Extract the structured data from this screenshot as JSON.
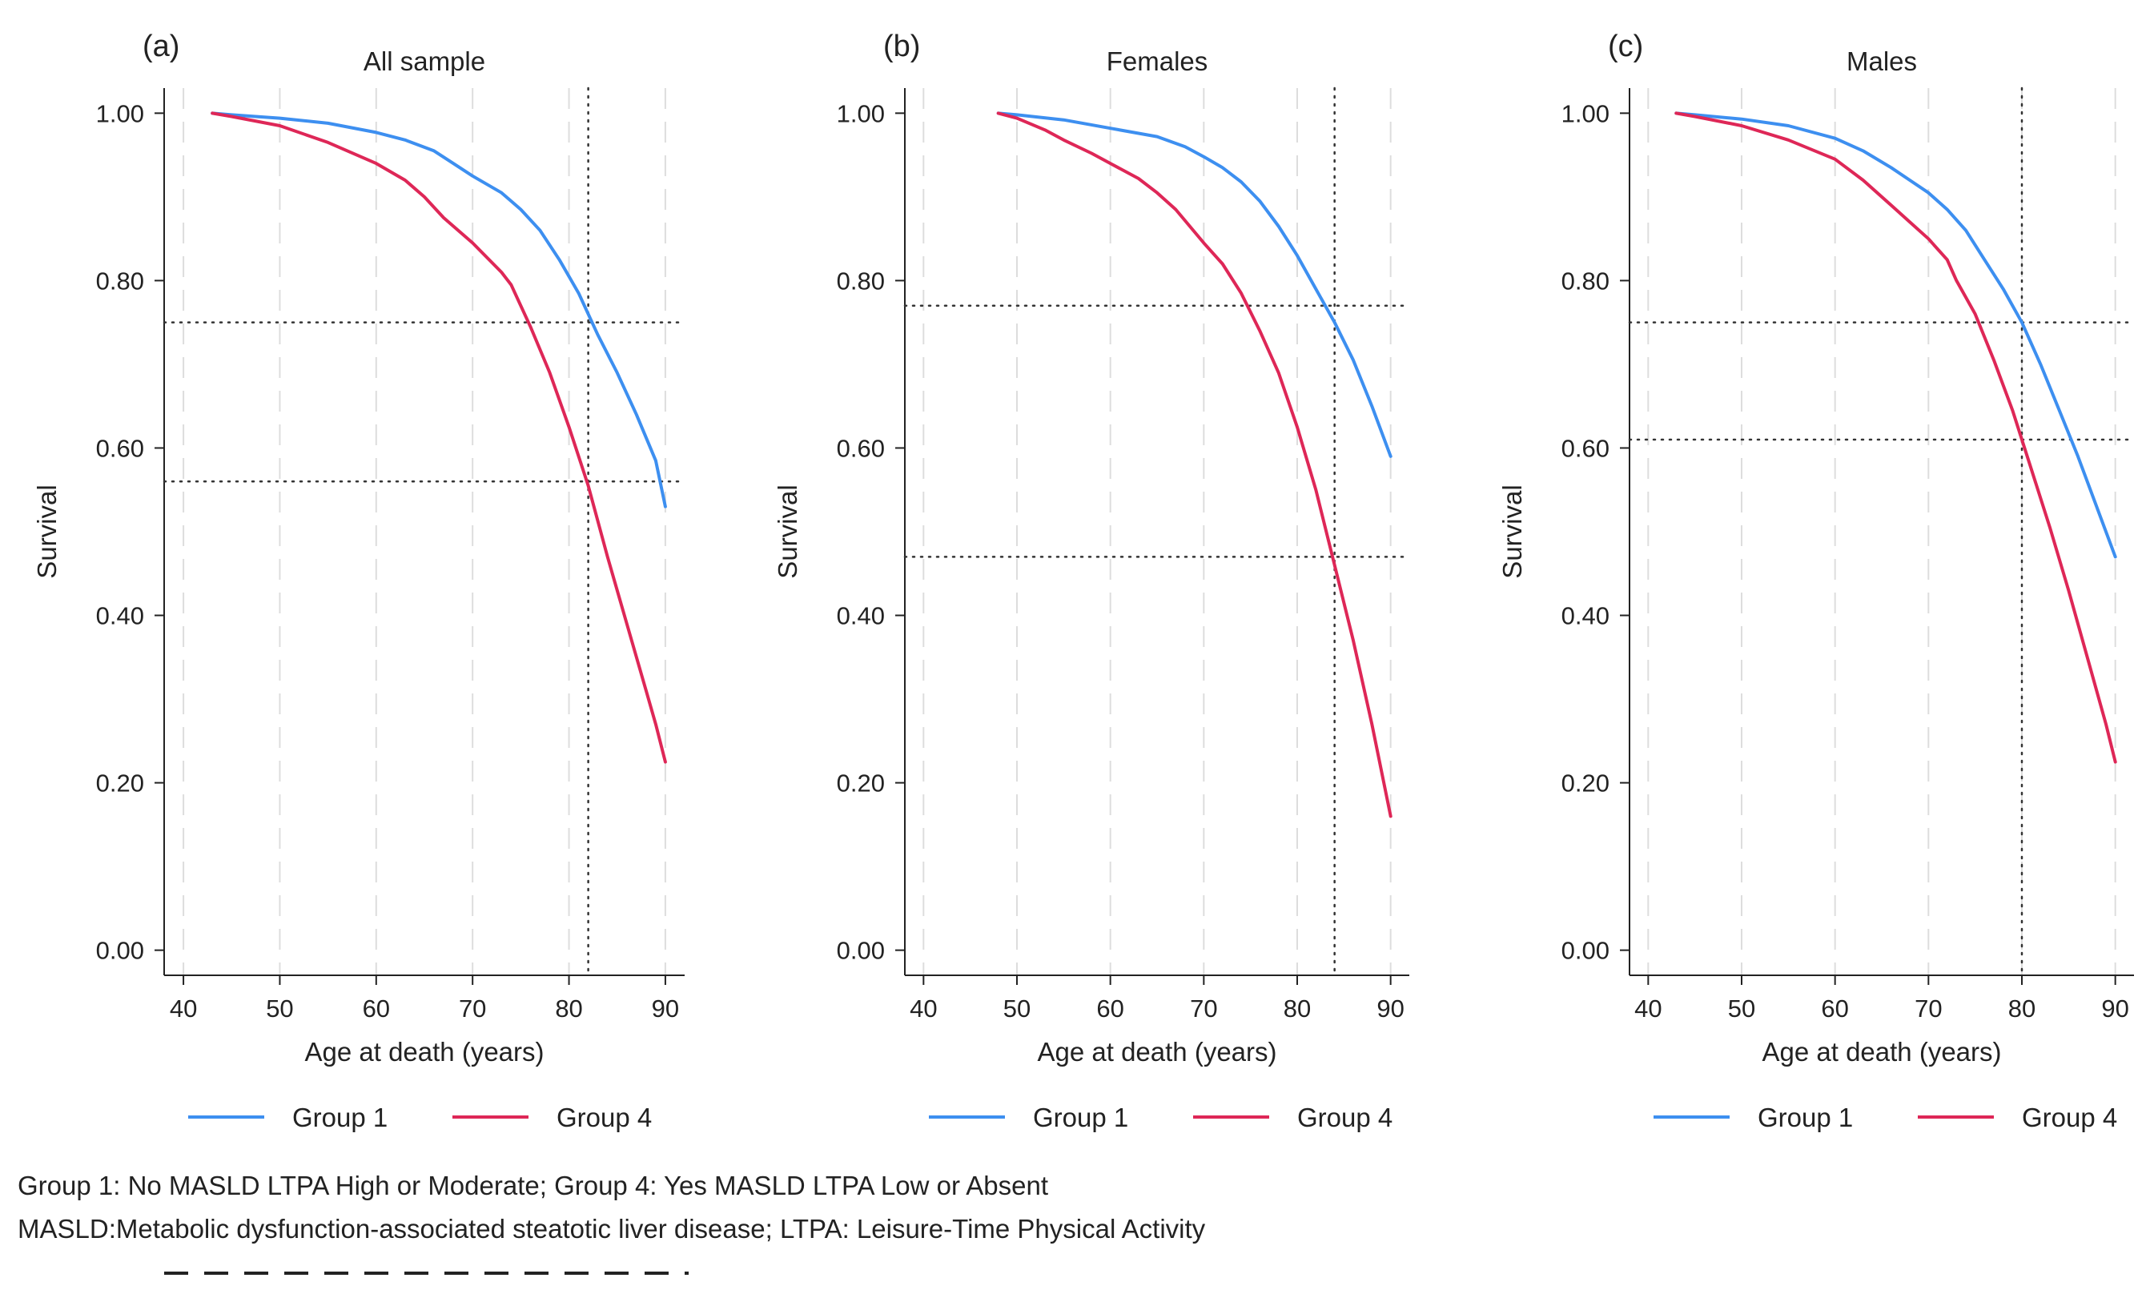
{
  "chart_data": [
    {
      "panel": "(a)",
      "type": "line",
      "title": "All sample",
      "xlabel": "Age at death (years)",
      "ylabel": "Survival",
      "xlim": [
        38,
        92
      ],
      "ylim": [
        -0.03,
        1.03
      ],
      "x_ticks": [
        40,
        50,
        60,
        70,
        80,
        90
      ],
      "y_ticks": [
        0.0,
        0.2,
        0.4,
        0.6,
        0.8,
        1.0
      ],
      "x_tick_labels": [
        "40",
        "50",
        "60",
        "70",
        "80",
        "90"
      ],
      "y_tick_labels": [
        "0.00",
        "0.20",
        "0.40",
        "0.60",
        "0.80",
        "1.00"
      ],
      "grid": "vertical dashed",
      "reference_lines": {
        "x": [
          82
        ],
        "y": [
          0.75,
          0.56
        ]
      },
      "series": [
        {
          "name": "Group 1",
          "color": "#3d8ff0",
          "x": [
            43,
            45,
            50,
            55,
            60,
            63,
            66,
            68,
            70,
            73,
            75,
            77,
            79,
            81,
            83,
            85,
            87,
            89,
            90
          ],
          "y": [
            1.0,
            0.998,
            0.994,
            0.988,
            0.977,
            0.968,
            0.955,
            0.94,
            0.925,
            0.905,
            0.885,
            0.86,
            0.825,
            0.785,
            0.735,
            0.69,
            0.64,
            0.585,
            0.53
          ]
        },
        {
          "name": "Group 4",
          "color": "#de2757",
          "x": [
            43,
            45,
            50,
            55,
            60,
            63,
            65,
            67,
            70,
            73,
            74,
            76,
            78,
            80,
            82,
            84,
            86,
            88,
            89,
            90
          ],
          "y": [
            1.0,
            0.996,
            0.985,
            0.965,
            0.94,
            0.92,
            0.9,
            0.875,
            0.845,
            0.81,
            0.795,
            0.745,
            0.69,
            0.625,
            0.555,
            0.47,
            0.39,
            0.31,
            0.27,
            0.225
          ]
        }
      ]
    },
    {
      "panel": "(b)",
      "type": "line",
      "title": "Females",
      "xlabel": "Age at death (years)",
      "ylabel": "Survival",
      "xlim": [
        38,
        92
      ],
      "ylim": [
        -0.03,
        1.03
      ],
      "x_ticks": [
        40,
        50,
        60,
        70,
        80,
        90
      ],
      "y_ticks": [
        0.0,
        0.2,
        0.4,
        0.6,
        0.8,
        1.0
      ],
      "x_tick_labels": [
        "40",
        "50",
        "60",
        "70",
        "80",
        "90"
      ],
      "y_tick_labels": [
        "0.00",
        "0.20",
        "0.40",
        "0.60",
        "0.80",
        "1.00"
      ],
      "grid": "vertical dashed",
      "reference_lines": {
        "x": [
          84
        ],
        "y": [
          0.77,
          0.47
        ]
      },
      "series": [
        {
          "name": "Group 1",
          "color": "#3d8ff0",
          "x": [
            48,
            50,
            55,
            60,
            65,
            68,
            70,
            72,
            74,
            76,
            78,
            80,
            82,
            84,
            86,
            88,
            90
          ],
          "y": [
            1.0,
            0.998,
            0.992,
            0.982,
            0.972,
            0.96,
            0.948,
            0.935,
            0.918,
            0.895,
            0.865,
            0.83,
            0.79,
            0.75,
            0.705,
            0.65,
            0.59
          ]
        },
        {
          "name": "Group 4",
          "color": "#de2757",
          "x": [
            48,
            50,
            53,
            55,
            58,
            60,
            63,
            65,
            67,
            70,
            72,
            74,
            76,
            78,
            80,
            82,
            84,
            86,
            88,
            90
          ],
          "y": [
            1.0,
            0.994,
            0.98,
            0.968,
            0.952,
            0.94,
            0.922,
            0.905,
            0.885,
            0.845,
            0.82,
            0.785,
            0.74,
            0.69,
            0.625,
            0.55,
            0.46,
            0.37,
            0.27,
            0.16
          ]
        }
      ]
    },
    {
      "panel": "(c)",
      "type": "line",
      "title": "Males",
      "xlabel": "Age at death (years)",
      "ylabel": "Survival",
      "xlim": [
        38,
        92
      ],
      "ylim": [
        -0.03,
        1.03
      ],
      "x_ticks": [
        40,
        50,
        60,
        70,
        80,
        90
      ],
      "y_ticks": [
        0.0,
        0.2,
        0.4,
        0.6,
        0.8,
        1.0
      ],
      "x_tick_labels": [
        "40",
        "50",
        "60",
        "70",
        "80",
        "90"
      ],
      "y_tick_labels": [
        "0.00",
        "0.20",
        "0.40",
        "0.60",
        "0.80",
        "1.00"
      ],
      "grid": "vertical dashed",
      "reference_lines": {
        "x": [
          80
        ],
        "y": [
          0.75,
          0.61
        ]
      },
      "series": [
        {
          "name": "Group 1",
          "color": "#3d8ff0",
          "x": [
            43,
            45,
            50,
            55,
            60,
            63,
            66,
            68,
            70,
            72,
            74,
            76,
            78,
            80,
            82,
            84,
            86,
            88,
            90
          ],
          "y": [
            1.0,
            0.998,
            0.993,
            0.985,
            0.97,
            0.955,
            0.935,
            0.92,
            0.905,
            0.885,
            0.86,
            0.825,
            0.79,
            0.75,
            0.7,
            0.645,
            0.59,
            0.53,
            0.47
          ]
        },
        {
          "name": "Group 4",
          "color": "#de2757",
          "x": [
            43,
            45,
            50,
            55,
            60,
            63,
            66,
            68,
            70,
            72,
            73,
            75,
            77,
            79,
            81,
            83,
            85,
            87,
            89,
            90
          ],
          "y": [
            1.0,
            0.996,
            0.985,
            0.968,
            0.945,
            0.92,
            0.89,
            0.87,
            0.85,
            0.825,
            0.8,
            0.76,
            0.705,
            0.645,
            0.575,
            0.505,
            0.43,
            0.35,
            0.27,
            0.225
          ]
        }
      ]
    }
  ],
  "legend": {
    "items": [
      {
        "name": "Group 1",
        "color": "#3d8ff0"
      },
      {
        "name": "Group 4",
        "color": "#de2757"
      }
    ],
    "placement": "bottom"
  },
  "footnotes": {
    "line1": "Group 1: No MASLD LTPA High or Moderate; Group 4: Yes MASLD LTPA Low or Absent",
    "line2": "MASLD:Metabolic dysfunction-associated steatotic liver disease; LTPA: Leisure-Time Physical Activity"
  },
  "colors": {
    "grid": "#dddddd",
    "reference_line": "#333333",
    "axis": "#222222"
  }
}
